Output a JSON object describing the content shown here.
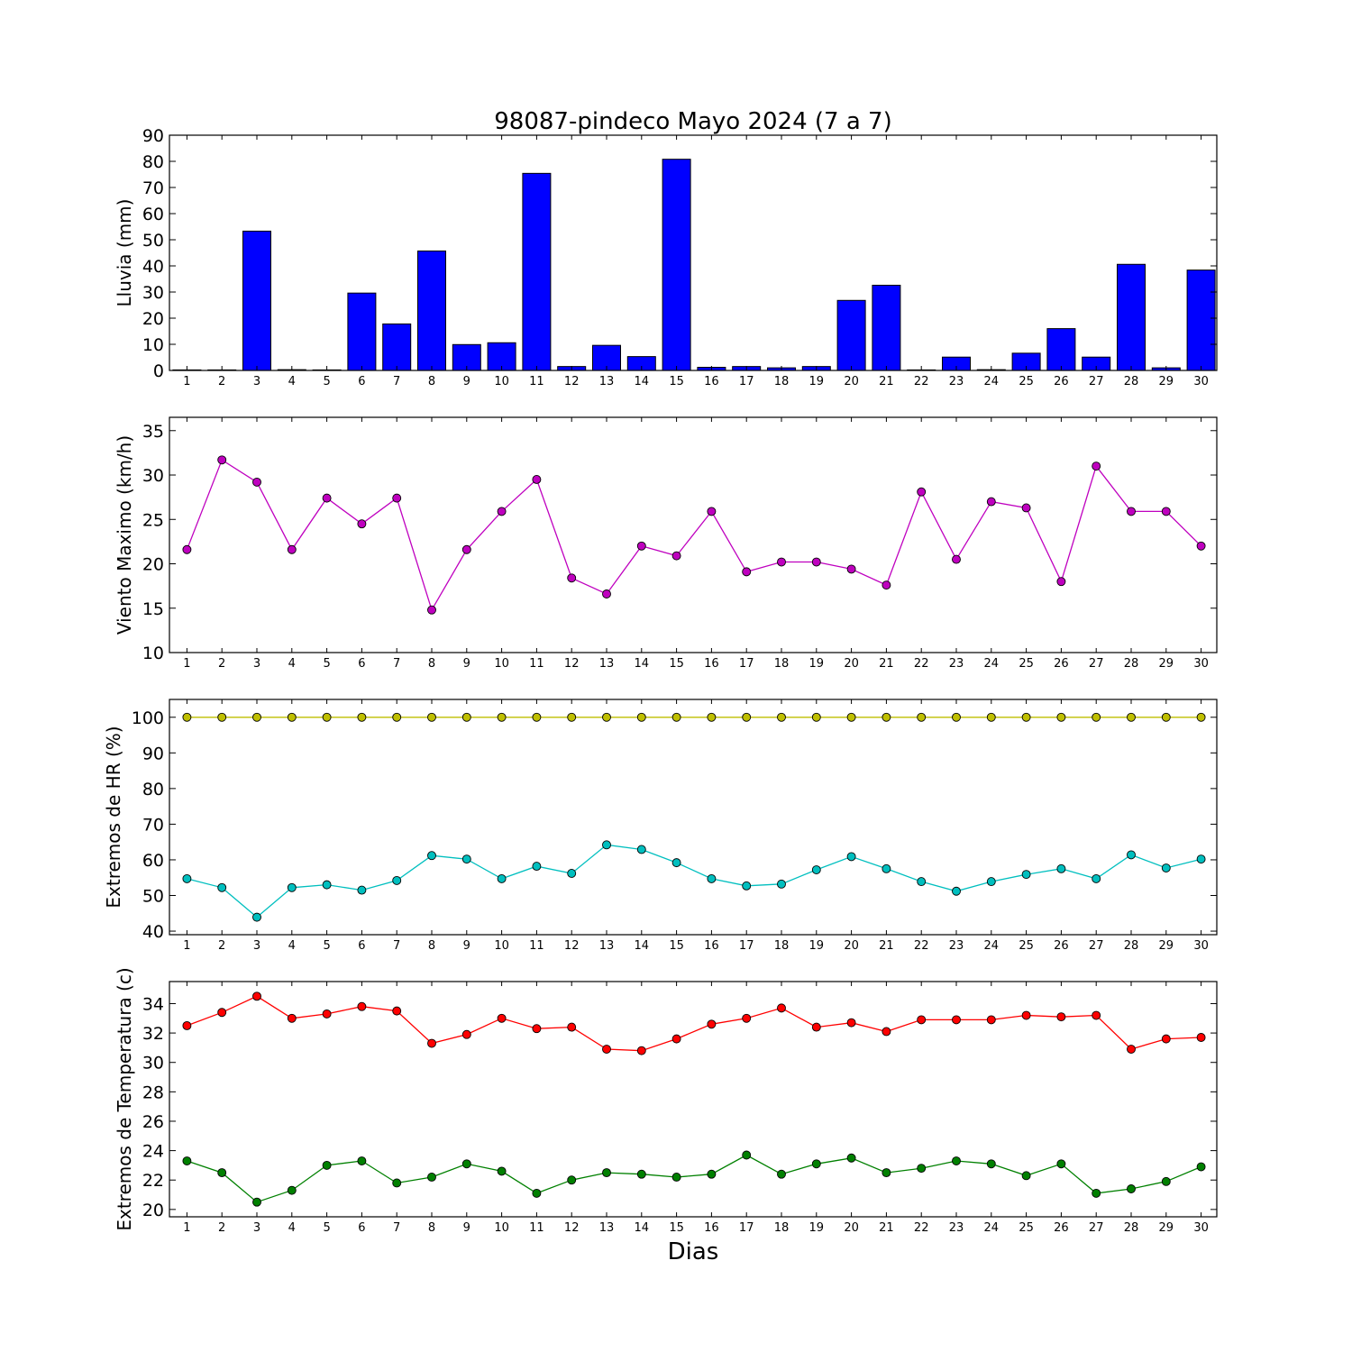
{
  "title": "98087-pindeco Mayo 2024  (7 a 7)",
  "xlabel": "Dias",
  "chart_data": [
    {
      "type": "bar",
      "ylabel": "Lluvia (mm)",
      "ylim": [
        0,
        90
      ],
      "yticks": [
        0,
        10,
        20,
        30,
        40,
        50,
        60,
        70,
        80,
        90
      ],
      "categories": [
        "1",
        "2",
        "3",
        "4",
        "5",
        "6",
        "7",
        "8",
        "9",
        "10",
        "11",
        "12",
        "13",
        "14",
        "15",
        "16",
        "17",
        "18",
        "19",
        "20",
        "21",
        "22",
        "23",
        "24",
        "25",
        "26",
        "27",
        "28",
        "29",
        "30"
      ],
      "series": [
        {
          "color": "#0000ff",
          "values": [
            0,
            0,
            53.3,
            0.3,
            0,
            29.6,
            17.8,
            45.7,
            9.9,
            10.6,
            75.4,
            1.5,
            9.6,
            5.3,
            80.8,
            1.2,
            1.5,
            1.0,
            1.5,
            26.8,
            32.6,
            0.2,
            5.1,
            0.3,
            6.6,
            16.0,
            5.1,
            40.6,
            1.0,
            38.4
          ]
        }
      ]
    },
    {
      "type": "line",
      "ylabel": "Viento Maximo (km/h)",
      "ylim": [
        10,
        36.5
      ],
      "yticks": [
        10,
        15,
        20,
        25,
        30,
        35
      ],
      "x": [
        1,
        2,
        3,
        4,
        5,
        6,
        7,
        8,
        9,
        10,
        11,
        12,
        13,
        14,
        15,
        16,
        17,
        18,
        19,
        20,
        21,
        22,
        23,
        24,
        25,
        26,
        27,
        28,
        29,
        30
      ],
      "series": [
        {
          "color": "#bf00bf",
          "values": [
            21.6,
            31.7,
            29.2,
            21.6,
            27.4,
            24.5,
            27.4,
            14.8,
            21.6,
            25.9,
            29.5,
            18.4,
            16.6,
            22.0,
            20.9,
            25.9,
            19.1,
            20.2,
            20.2,
            19.4,
            17.6,
            28.1,
            20.5,
            27.0,
            26.3,
            18.0,
            31.0,
            25.9,
            25.9,
            22.0
          ]
        }
      ]
    },
    {
      "type": "line",
      "ylabel": "Extremos de HR (%)",
      "ylim": [
        39,
        105
      ],
      "yticks": [
        40,
        50,
        60,
        70,
        80,
        90,
        100
      ],
      "x": [
        1,
        2,
        3,
        4,
        5,
        6,
        7,
        8,
        9,
        10,
        11,
        12,
        13,
        14,
        15,
        16,
        17,
        18,
        19,
        20,
        21,
        22,
        23,
        24,
        25,
        26,
        27,
        28,
        29,
        30
      ],
      "series": [
        {
          "color": "#bfbf00",
          "values": [
            100,
            100,
            100,
            100,
            100,
            100,
            100,
            100,
            100,
            100,
            100,
            100,
            100,
            100,
            100,
            100,
            100,
            100,
            100,
            100,
            100,
            100,
            100,
            100,
            100,
            100,
            100,
            100,
            100,
            100
          ]
        },
        {
          "color": "#00bfbf",
          "values": [
            54.7,
            52.2,
            43.9,
            52.2,
            53.0,
            51.5,
            54.2,
            61.2,
            60.2,
            54.7,
            58.2,
            56.2,
            64.2,
            62.9,
            59.2,
            54.7,
            52.7,
            53.2,
            57.2,
            60.9,
            57.5,
            53.9,
            51.2,
            53.9,
            55.9,
            57.5,
            54.7,
            61.4,
            57.7,
            60.2
          ]
        }
      ]
    },
    {
      "type": "line",
      "ylabel": "Extremos de Temperatura (c)",
      "ylim": [
        19.5,
        35.5
      ],
      "yticks": [
        20,
        22,
        24,
        26,
        28,
        30,
        32,
        34
      ],
      "x": [
        1,
        2,
        3,
        4,
        5,
        6,
        7,
        8,
        9,
        10,
        11,
        12,
        13,
        14,
        15,
        16,
        17,
        18,
        19,
        20,
        21,
        22,
        23,
        24,
        25,
        26,
        27,
        28,
        29,
        30
      ],
      "series": [
        {
          "color": "#ff0000",
          "values": [
            32.5,
            33.4,
            34.5,
            33.0,
            33.3,
            33.8,
            33.5,
            31.3,
            31.9,
            33.0,
            32.3,
            32.4,
            30.9,
            30.8,
            31.6,
            32.6,
            33.0,
            33.7,
            32.4,
            32.7,
            32.1,
            32.9,
            32.9,
            32.9,
            33.2,
            33.1,
            33.2,
            30.9,
            31.6,
            31.7
          ]
        },
        {
          "color": "#008000",
          "values": [
            23.3,
            22.5,
            20.5,
            21.3,
            23.0,
            23.3,
            21.8,
            22.2,
            23.1,
            22.6,
            21.1,
            22.0,
            22.5,
            22.4,
            22.2,
            22.4,
            23.7,
            22.4,
            23.1,
            23.5,
            22.5,
            22.8,
            23.3,
            23.1,
            22.3,
            23.1,
            21.1,
            21.4,
            21.9,
            22.9
          ]
        }
      ]
    }
  ]
}
